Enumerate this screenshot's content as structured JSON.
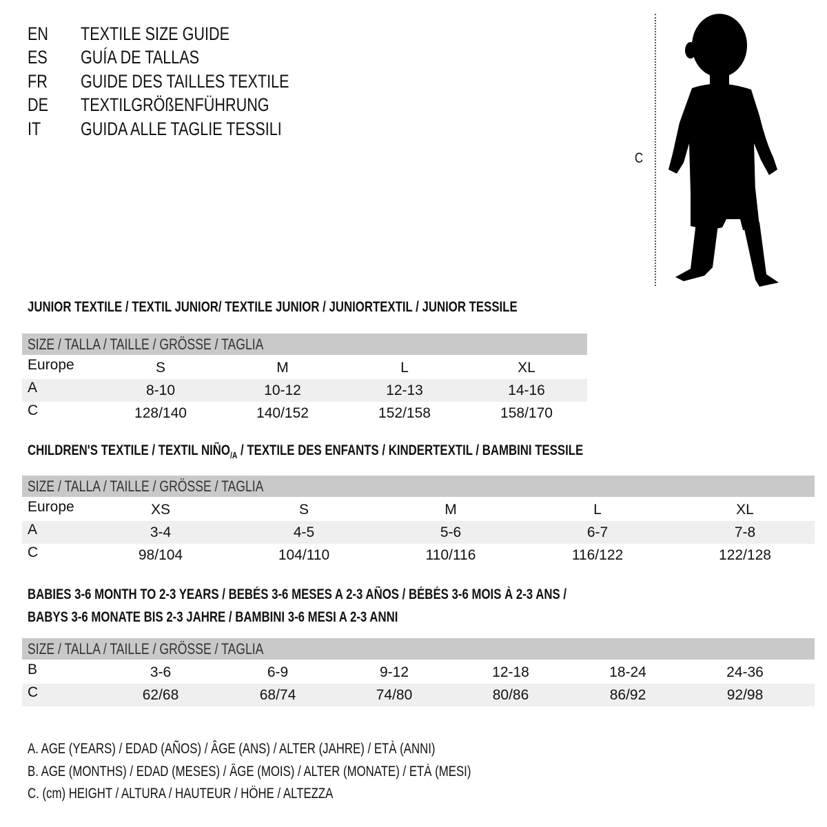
{
  "titles": [
    {
      "code": "EN",
      "text": "TEXTILE SIZE GUIDE"
    },
    {
      "code": "ES",
      "text": "GUÍA DE TALLAS"
    },
    {
      "code": "FR",
      "text": "GUIDE DES TAILLES TEXTILE"
    },
    {
      "code": "DE",
      "text": "TEXTILGRÖßENFÜHRUNG"
    },
    {
      "code": "IT",
      "text": "GUIDA ALLE TAGLIE TESSILI"
    }
  ],
  "figure": {
    "measure_label": "C",
    "icon": "child-silhouette"
  },
  "junior": {
    "heading": "JUNIOR TEXTILE / TEXTIL JUNIOR/ TEXTILE JUNIOR / JUNIORTEXTIL / JUNIOR TESSILE",
    "header": "SIZE / TALLA / TAILLE / GRÖSSE / TAGLIA",
    "rows": [
      {
        "label": "Europe",
        "cells": [
          "S",
          "M",
          "L",
          "XL"
        ]
      },
      {
        "label": "A",
        "cells": [
          "8-10",
          "10-12",
          "12-13",
          "14-16"
        ]
      },
      {
        "label": "C",
        "cells": [
          "128/140",
          "140/152",
          "152/158",
          "158/170"
        ]
      }
    ]
  },
  "children": {
    "heading_pre": "CHILDREN'S TEXTILE / TEXTIL NIÑO",
    "heading_sub": "/A",
    "heading_post": " / TEXTILE DES ENFANTS / KINDERTEXTIL / BAMBINI TESSILE",
    "header": "SIZE / TALLA / TAILLE / GRÖSSE / TAGLIA",
    "rows": [
      {
        "label": "Europe",
        "cells": [
          "XS",
          "S",
          "M",
          "L",
          "XL"
        ]
      },
      {
        "label": "A",
        "cells": [
          "3-4",
          "4-5",
          "5-6",
          "6-7",
          "7-8"
        ]
      },
      {
        "label": "C",
        "cells": [
          "98/104",
          "104/110",
          "110/116",
          "116/122",
          "122/128"
        ]
      }
    ]
  },
  "babies": {
    "heading_line1": "BABIES 3-6 MONTH TO 2-3 YEARS / BEBÉS 3-6 MESES A 2-3 AÑOS / BÉBÉS 3-6 MOIS À 2-3 ANS /",
    "heading_line2": "BABYS 3-6 MONATE BIS 2-3 JAHRE / BAMBINI 3-6 MESI A 2-3 ANNI",
    "header": "SIZE / TALLA / TAILLE / GRÖSSE / TAGLIA",
    "rows": [
      {
        "label": "B",
        "cells": [
          "3-6",
          "6-9",
          "9-12",
          "12-18",
          "18-24",
          "24-36"
        ]
      },
      {
        "label": "C",
        "cells": [
          "62/68",
          "68/74",
          "74/80",
          "80/86",
          "86/92",
          "92/98"
        ]
      }
    ]
  },
  "legend": [
    "A. AGE (YEARS) / EDAD (AÑOS) / ÂGE (ANS) / ALTER (JAHRE) / ETÀ (ANNI)",
    "B. AGE (MONTHS) / EDAD (MESES) / ÂGE (MOIS) / ALTER (MONATE) / ETÀ (MESI)",
    "C. (cm) HEIGHT / ALTURA / HAUTEUR / HÖHE / ALTEZZA"
  ],
  "colors": {
    "header_bg": "#c9c9c9",
    "alt_row_bg": "#efefef",
    "text": "#111111"
  }
}
